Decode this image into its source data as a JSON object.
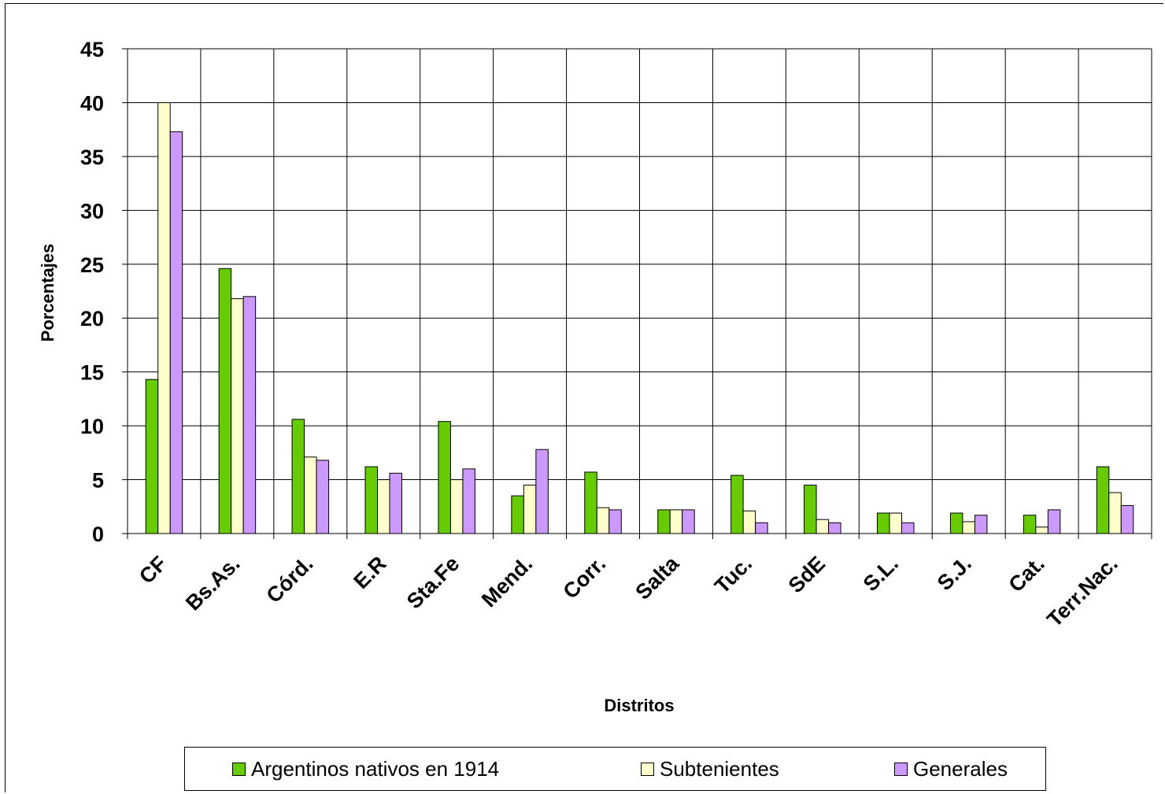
{
  "chart_data": {
    "type": "bar",
    "title": "",
    "xlabel": "Distritos",
    "ylabel": "Porcentajes",
    "ylim": [
      0,
      45
    ],
    "yticks": [
      0,
      5,
      10,
      15,
      20,
      25,
      30,
      35,
      40,
      45
    ],
    "grid": true,
    "legend_position": "bottom",
    "categories": [
      "CF",
      "Bs.As.",
      "Córd.",
      "E.R",
      "Sta.Fe",
      "Mend.",
      "Corr.",
      "Salta",
      "Tuc.",
      "SdE",
      "S.L.",
      "S.J.",
      "Cat.",
      "Terr.Nac."
    ],
    "series": [
      {
        "name": "Argentinos nativos en 1914",
        "color": "#66cc00",
        "values": [
          14.3,
          24.6,
          10.6,
          6.2,
          10.4,
          3.5,
          5.7,
          2.2,
          5.4,
          4.5,
          1.9,
          1.9,
          1.7,
          6.2
        ]
      },
      {
        "name": "Subtenientes",
        "color": "#ffffcc",
        "values": [
          40.0,
          21.8,
          7.1,
          5.0,
          5.0,
          4.5,
          2.4,
          2.2,
          2.1,
          1.3,
          1.9,
          1.1,
          0.6,
          3.8
        ]
      },
      {
        "name": "Generales",
        "color": "#cc99ff",
        "values": [
          37.3,
          22.0,
          6.8,
          5.6,
          6.0,
          7.8,
          2.2,
          2.2,
          1.0,
          1.0,
          1.0,
          1.7,
          2.2,
          2.6
        ]
      }
    ]
  }
}
